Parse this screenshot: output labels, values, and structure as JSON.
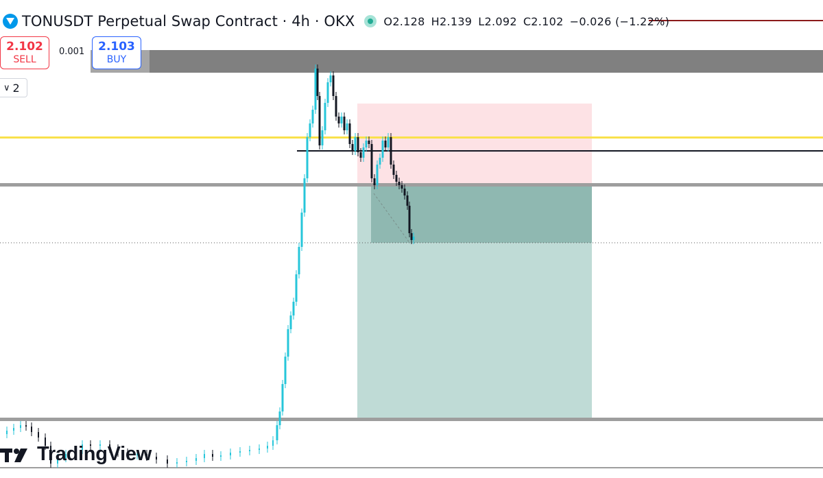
{
  "header": {
    "title": "TONUSDT Perpetual Swap Contract · 4h · OKX",
    "ohlc": [
      {
        "k": "O",
        "v": "2.128"
      },
      {
        "k": "H",
        "v": "2.139"
      },
      {
        "k": "L",
        "v": "2.092"
      },
      {
        "k": "C",
        "v": "2.102"
      }
    ],
    "change": "−0.026 (−1.22%)",
    "status_color": "#22ab94"
  },
  "trade": {
    "sell_price": "2.102",
    "sell_label": "SELL",
    "spread": "0.001",
    "buy_price": "2.103",
    "buy_label": "BUY"
  },
  "interval_button": {
    "value": "2",
    "icon": "chevron-down-icon"
  },
  "watermark": {
    "brand": "TradingView"
  },
  "colors": {
    "up": "#26c6da",
    "down": "#131722",
    "stop_zone": "#fde2e5",
    "target_zone": "#bfdbd6",
    "target_zone_dark": "#8fb8b1",
    "support_band": "#808080",
    "yellow_line": "#f9e14b",
    "entry_line": "#131722"
  }
}
